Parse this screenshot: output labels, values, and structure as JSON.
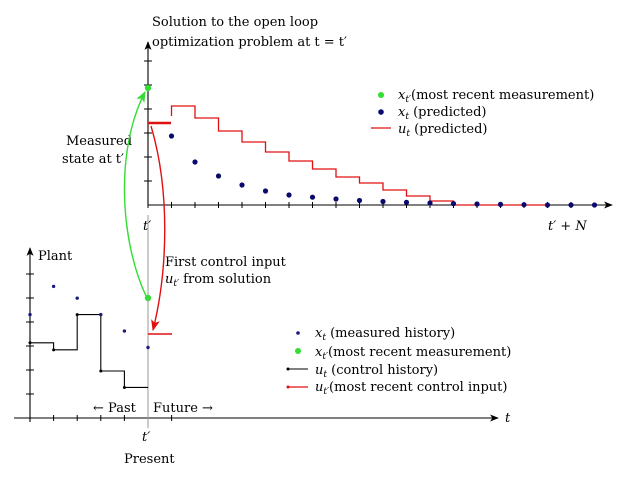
{
  "colors": {
    "measurement_history": "#1a1a7a",
    "predicted_state": "#0a0a6e",
    "recent_measurement": "#33dd33",
    "red": "#e01010",
    "black": "#000000"
  },
  "top_panel": {
    "title_line1": "Solution to the open loop",
    "title_line2": "optimization problem at t = t′",
    "xtick_start": "t′",
    "xtick_end": "t′ + N",
    "legend": [
      {
        "marker": "green-dot",
        "label_sym": "x",
        "label_sub": "t′",
        "label_rest": "(most recent measurement)"
      },
      {
        "marker": "blue-dot",
        "label_sym": "x",
        "label_sub": "t",
        "label_rest": " (predicted)"
      },
      {
        "marker": "red-line",
        "label_sym": "u",
        "label_sub": "t",
        "label_rest": " (predicted)"
      }
    ]
  },
  "bottom_panel": {
    "ylabel": "Plant",
    "xlabel": "t",
    "xtick_present": "t′",
    "present_label": "Present",
    "past_label": "← Past",
    "future_label": "Future →",
    "legend": [
      {
        "marker": "blue-small-dot",
        "label_sym": "x",
        "label_sub": "t",
        "label_rest": " (measured history)"
      },
      {
        "marker": "green-dot",
        "label_sym": "x",
        "label_sub": "t′",
        "label_rest": "(most recent measurement)"
      },
      {
        "marker": "black-line",
        "label_sym": "u",
        "label_sub": "t",
        "label_rest": " (control history)"
      },
      {
        "marker": "red-line",
        "label_sym": "u",
        "label_sub": "t′",
        "label_rest": "(most recent control input)"
      }
    ]
  },
  "annotations": {
    "measured_line1": "Measured",
    "measured_line2": "state at t′",
    "first_control_line1": "First control input",
    "first_control_line2_sym": "u",
    "first_control_line2_sub": "t′",
    "first_control_line2_rest": " from solution"
  },
  "chart_data": {
    "predicted_state": [
      6.9,
      4.3,
      2.9,
      2.0,
      1.4,
      1.0,
      0.78,
      0.6,
      0.45,
      0.35,
      0.26,
      0.2,
      0.14,
      0.1,
      0.06,
      0.03,
      0.0,
      0.0,
      0.0
    ],
    "predicted_input": [
      8.9,
      9.9,
      8.7,
      7.4,
      6.3,
      5.3,
      4.4,
      3.6,
      2.8,
      2.2,
      1.5,
      0.9,
      0.4,
      0.0,
      0.0,
      0.0,
      0.0
    ],
    "measured_history": [
      4.4,
      5.6,
      5.1,
      4.4,
      3.7,
      3.0
    ],
    "control_history": [
      3.2,
      2.9,
      4.4,
      2.0,
      1.3
    ],
    "recent_control_input": 2.0
  }
}
